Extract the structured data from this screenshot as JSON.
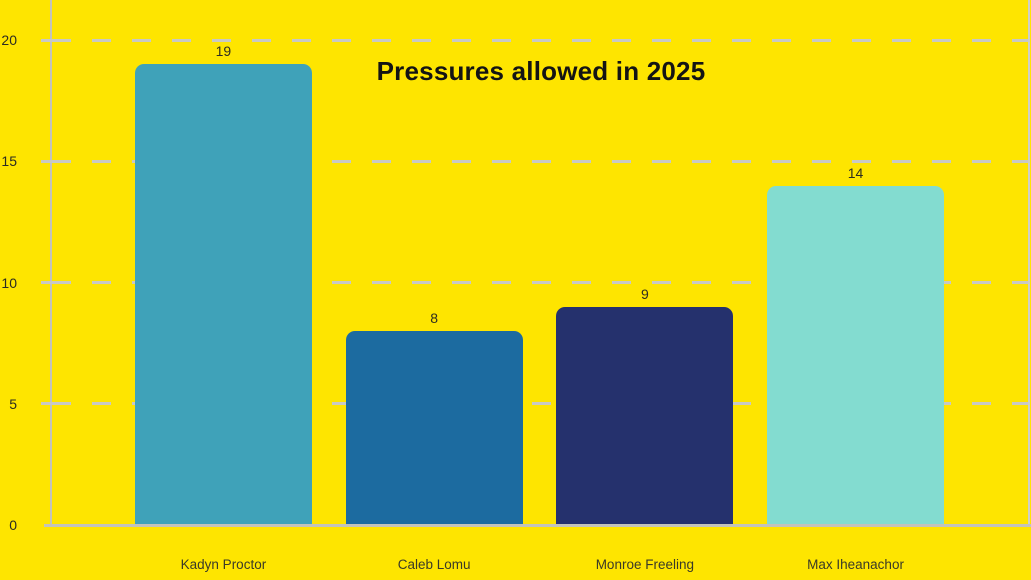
{
  "title": "Pressures allowed in 2025",
  "colors": {
    "background": "#FEE500",
    "axis_line": "#C3C3BA",
    "gridline": "#C9C9C4",
    "title_text": "#141414",
    "tick_text": "#2B2B22",
    "category_text": "#3A3A28",
    "value_text": "#2E2E20"
  },
  "chart_data": {
    "type": "bar",
    "title": "Pressures allowed in 2025",
    "categories": [
      "Kadyn Proctor",
      "Caleb Lomu",
      "Monroe Freeling",
      "Max Iheanachor"
    ],
    "values": [
      19,
      8,
      9,
      14
    ],
    "value_labels": [
      "19",
      "8",
      "9",
      "14"
    ],
    "bar_colors": [
      "#3FA2B9",
      "#1C6BA0",
      "#25316D",
      "#83DCD0"
    ],
    "xlabel": "",
    "ylabel": "",
    "yticks": [
      0,
      5,
      10,
      15,
      20
    ],
    "ylim": [
      0,
      20
    ],
    "grid": "horizontal-dashed",
    "legend": "none"
  }
}
